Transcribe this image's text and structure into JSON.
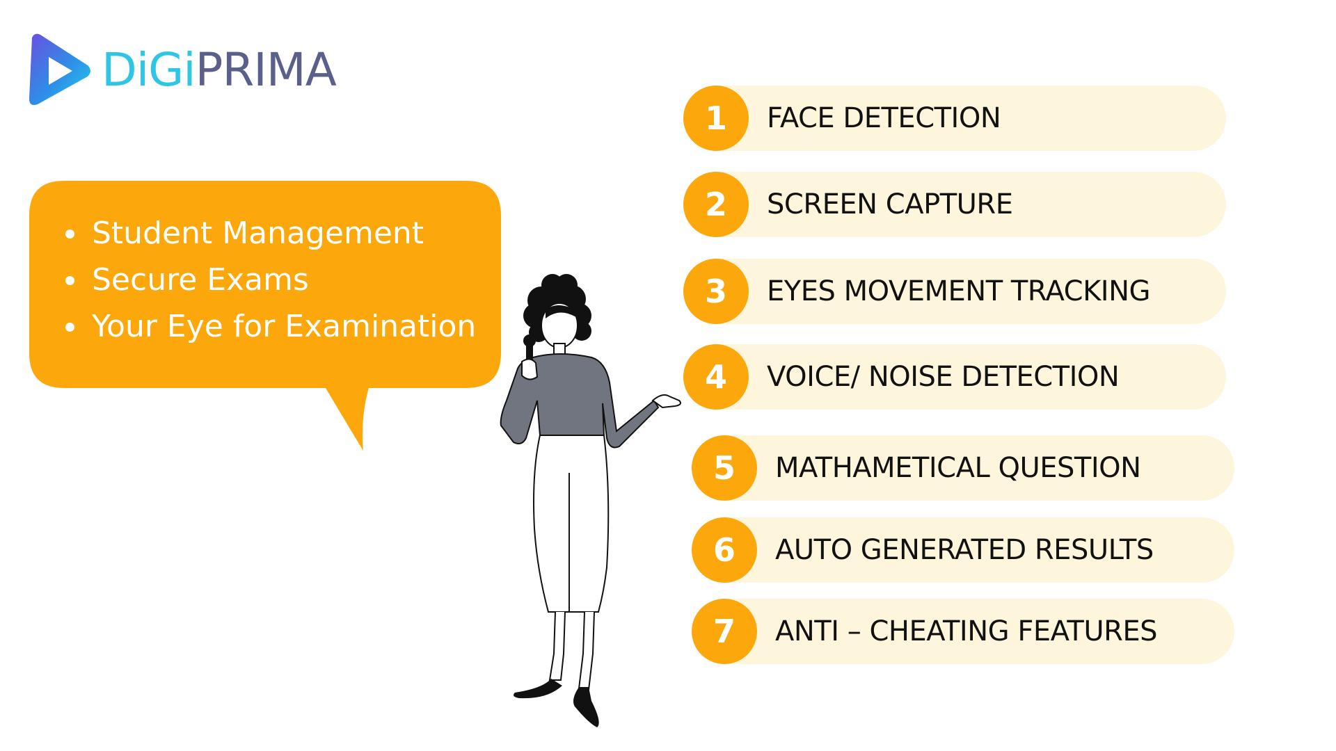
{
  "logo": {
    "digi": "DiGi",
    "prima": "PRIMA",
    "icon": "play-hexagon-icon"
  },
  "bubble": {
    "items": [
      "Student Management",
      "Secure Exams",
      "Your Eye for Examination"
    ]
  },
  "features": [
    {
      "number": "1",
      "label": "FACE DETECTION"
    },
    {
      "number": "2",
      "label": "SCREEN CAPTURE"
    },
    {
      "number": "3",
      "label": "EYES MOVEMENT TRACKING"
    },
    {
      "number": "4",
      "label": "VOICE/ NOISE DETECTION"
    },
    {
      "number": "5",
      "label": "MATHAMETICAL QUESTION"
    },
    {
      "number": "6",
      "label": "AUTO GENERATED RESULTS"
    },
    {
      "number": "7",
      "label": "ANTI – CHEATING FEATURES"
    }
  ],
  "colors": {
    "accent": "#fca70b",
    "pill": "#fdf5dc",
    "logo_cyan": "#2fc6e6",
    "logo_indigo": "#5b5f8c"
  },
  "illustration": "woman-with-microphone-illustration"
}
